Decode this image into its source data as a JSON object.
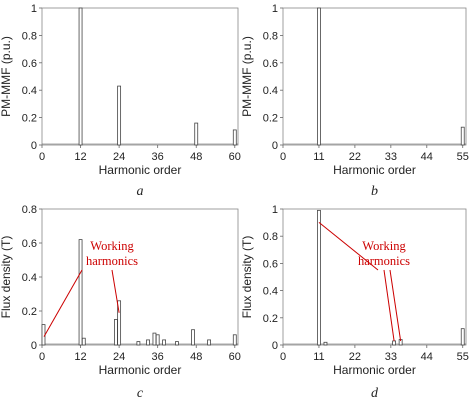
{
  "chart_data": [
    {
      "type": "bar",
      "panel": "a",
      "caption": "a",
      "xlabel": "Harmonic order",
      "ylabel": "PM-MMF (p.u.)",
      "xlim": [
        0,
        61
      ],
      "ylim": [
        0,
        1
      ],
      "xticks": [
        0,
        12,
        24,
        36,
        48,
        60
      ],
      "yticks": [
        0,
        0.2,
        0.4,
        0.6,
        0.8,
        1
      ],
      "ytick_labels": [
        "0",
        "0.2",
        "0.4",
        "0.6",
        "0.8",
        "1"
      ],
      "x": [
        12,
        24,
        48,
        60
      ],
      "values": [
        1.0,
        0.43,
        0.16,
        0.11
      ],
      "annotations": []
    },
    {
      "type": "bar",
      "panel": "b",
      "caption": "b",
      "xlabel": "Harmonic order",
      "ylabel": "PM-MMF (p.u.)",
      "xlim": [
        0,
        56
      ],
      "ylim": [
        0,
        1
      ],
      "xticks": [
        0,
        11,
        22,
        33,
        44,
        55
      ],
      "yticks": [
        0,
        0.2,
        0.4,
        0.6,
        0.8,
        1
      ],
      "ytick_labels": [
        "0",
        "0.2",
        "0.4",
        "0.6",
        "0.8",
        "1"
      ],
      "x": [
        11,
        55
      ],
      "values": [
        1.0,
        0.13
      ],
      "annotations": []
    },
    {
      "type": "bar",
      "panel": "c",
      "caption": "c",
      "xlabel": "Harmonic order",
      "ylabel": "Flux density (T)",
      "xlim": [
        0,
        61
      ],
      "ylim": [
        0,
        0.8
      ],
      "xticks": [
        0,
        12,
        24,
        36,
        48,
        60
      ],
      "yticks": [
        0,
        0.2,
        0.4,
        0.6,
        0.8
      ],
      "ytick_labels": [
        "0",
        "0.2",
        "0.4",
        "0.6",
        "0.8"
      ],
      "x": [
        0,
        12,
        13,
        23,
        24,
        30,
        33,
        35,
        36,
        38,
        42,
        47,
        52,
        60
      ],
      "values": [
        0.12,
        0.62,
        0.04,
        0.15,
        0.26,
        0.02,
        0.03,
        0.07,
        0.06,
        0.03,
        0.02,
        0.09,
        0.03,
        0.06
      ],
      "annotations": [
        {
          "text_lines": [
            "Working",
            "harmonics"
          ],
          "targets": [
            0,
            24
          ]
        }
      ]
    },
    {
      "type": "bar",
      "panel": "d",
      "caption": "d",
      "xlabel": "Harmonic order",
      "ylabel": "Flux density (T)",
      "xlim": [
        0,
        56
      ],
      "ylim": [
        0,
        1
      ],
      "xticks": [
        0,
        11,
        22,
        33,
        44,
        55
      ],
      "yticks": [
        0,
        0.2,
        0.4,
        0.6,
        0.8,
        1
      ],
      "ytick_labels": [
        "0",
        "0.2",
        "0.4",
        "0.6",
        "0.8",
        "1"
      ],
      "x": [
        11,
        13,
        34,
        36,
        55
      ],
      "values": [
        0.99,
        0.02,
        0.03,
        0.04,
        0.12
      ],
      "annotations": [
        {
          "text_lines": [
            "Working",
            "harmonics"
          ],
          "targets": [
            11,
            34,
            36
          ]
        }
      ]
    }
  ]
}
